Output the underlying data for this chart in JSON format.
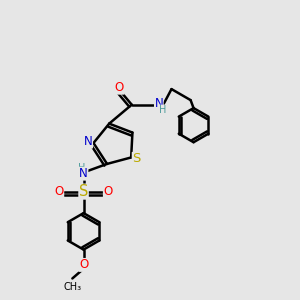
{
  "bg_color": "#e6e6e6",
  "atom_colors": {
    "C": "#000000",
    "N": "#0000cc",
    "O": "#ff0000",
    "S": "#bbaa00",
    "H": "#4a9a9a"
  },
  "bond_color": "#000000",
  "bond_width": 1.8,
  "dbo": 0.012,
  "font_size": 8.5
}
